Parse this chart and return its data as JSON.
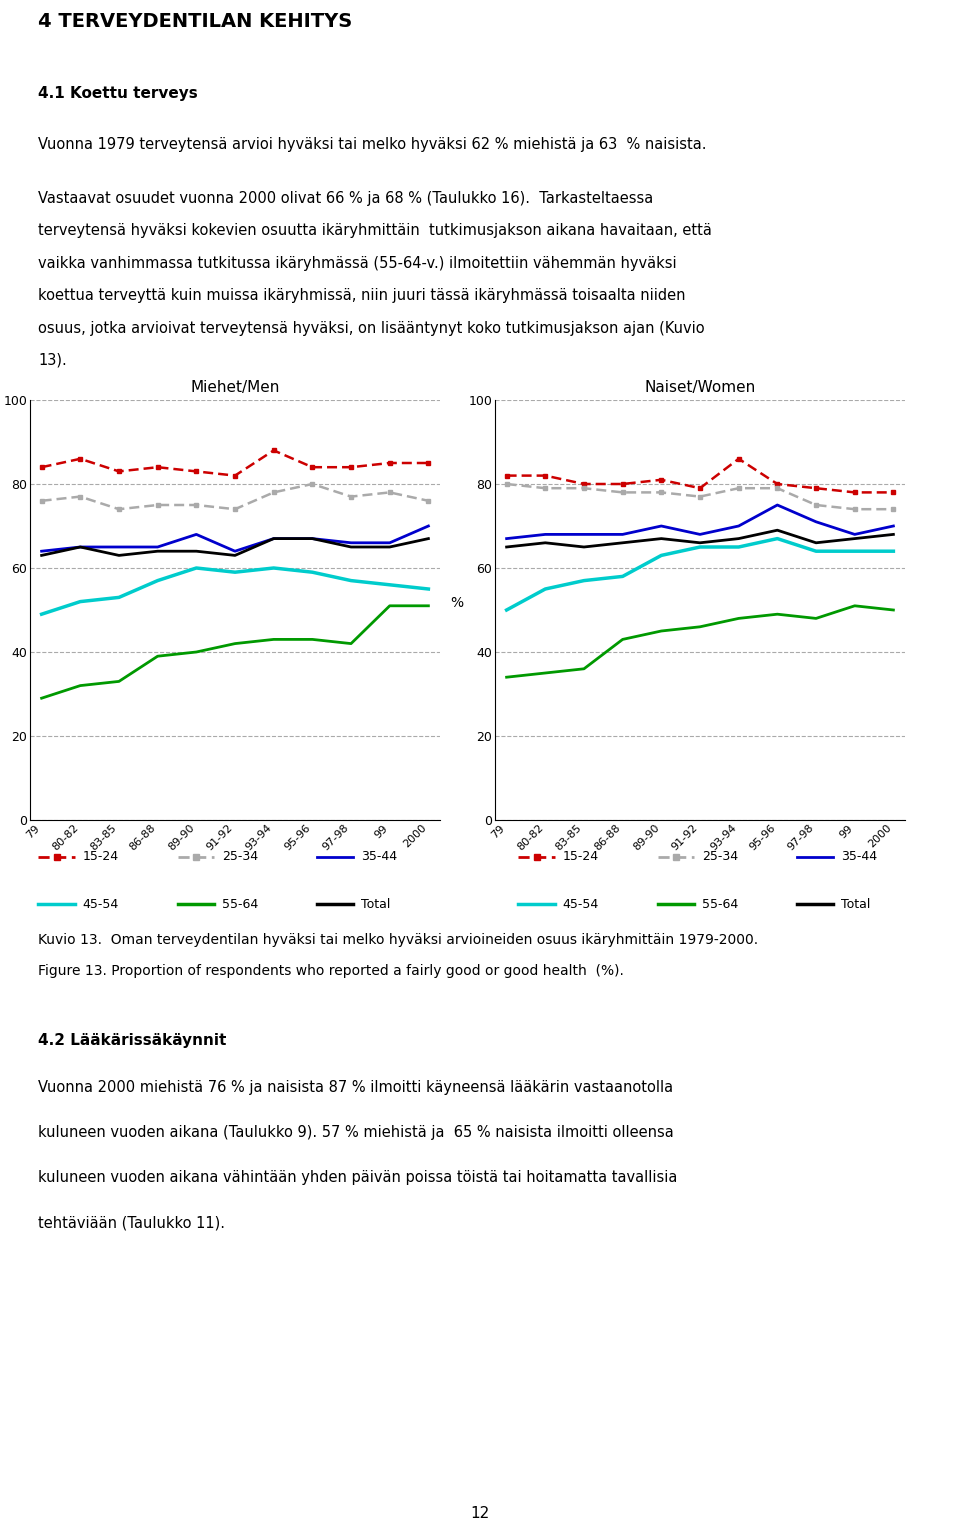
{
  "x_labels": [
    "79",
    "80-82",
    "83-85",
    "86-88",
    "89-90",
    "91-92",
    "93-94",
    "95-96",
    "97-98",
    "99",
    "2000"
  ],
  "men": {
    "age_15_24": [
      84,
      86,
      83,
      84,
      83,
      82,
      88,
      84,
      84,
      85,
      85
    ],
    "age_25_34": [
      76,
      77,
      74,
      75,
      75,
      74,
      78,
      80,
      77,
      78,
      76
    ],
    "age_35_44": [
      64,
      65,
      65,
      65,
      68,
      64,
      67,
      67,
      66,
      66,
      70
    ],
    "age_45_54": [
      49,
      52,
      53,
      57,
      60,
      59,
      60,
      59,
      57,
      56,
      55
    ],
    "age_55_64": [
      29,
      32,
      33,
      39,
      40,
      42,
      43,
      43,
      42,
      51,
      51
    ],
    "total": [
      63,
      65,
      63,
      64,
      64,
      63,
      67,
      67,
      65,
      65,
      67
    ]
  },
  "women": {
    "age_15_24": [
      82,
      82,
      80,
      80,
      81,
      79,
      86,
      80,
      79,
      78,
      78
    ],
    "age_25_34": [
      80,
      79,
      79,
      78,
      78,
      77,
      79,
      79,
      75,
      74,
      74
    ],
    "age_35_44": [
      67,
      68,
      68,
      68,
      70,
      68,
      70,
      75,
      71,
      68,
      70
    ],
    "age_45_54": [
      50,
      55,
      57,
      58,
      63,
      65,
      65,
      67,
      64,
      64,
      64
    ],
    "age_55_64": [
      34,
      35,
      36,
      43,
      45,
      46,
      48,
      49,
      48,
      51,
      50
    ],
    "total": [
      65,
      66,
      65,
      66,
      67,
      66,
      67,
      69,
      66,
      67,
      68
    ]
  },
  "colors": {
    "age_15_24": "#cc0000",
    "age_25_34": "#aaaaaa",
    "age_35_44": "#0000cc",
    "age_45_54": "#00cccc",
    "age_55_64": "#009900",
    "total": "#000000"
  },
  "title_men": "Miehet/Men",
  "title_women": "Naiset/Women",
  "yticks": [
    0,
    20,
    40,
    60,
    80,
    100
  ],
  "heading": "4 TERVEYDENTILAN KEHITYS",
  "section_title": "4.1 Koettu terveys",
  "caption1": "Kuvio 13.  Oman terveydentilan hyväksi tai melko hyväksi arvioineiden osuus ikäryhmittäin 1979-2000.",
  "caption2": "Figure 13. Proportion of respondents who reported a fairly good or good health  (%).",
  "section2_title": "4.2 Lääkärissäkäynnit",
  "page_number": "12"
}
